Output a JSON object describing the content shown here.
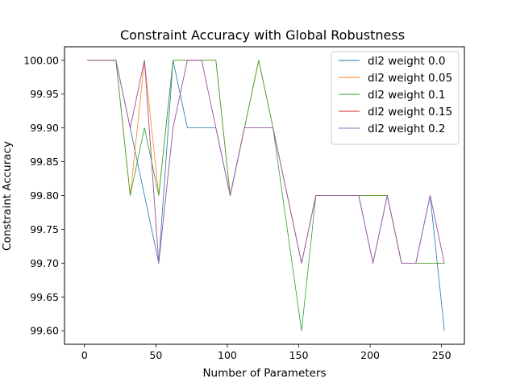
{
  "chart_data": {
    "type": "line",
    "title": "Constraint Accuracy with Global Robustness",
    "xlabel": "Number of Parameters",
    "ylabel": "Constraint Accuracy",
    "xlim": [
      -14,
      266
    ],
    "ylim": [
      99.58,
      100.02
    ],
    "xticks": [
      0,
      50,
      100,
      150,
      200,
      250
    ],
    "xtick_labels": [
      "0",
      "50",
      "100",
      "150",
      "200",
      "250"
    ],
    "yticks": [
      99.6,
      99.65,
      99.7,
      99.75,
      99.8,
      99.85,
      99.9,
      99.95,
      100.0
    ],
    "ytick_labels": [
      "99.60",
      "99.65",
      "99.70",
      "99.75",
      "99.80",
      "99.85",
      "99.90",
      "99.95",
      "100.00"
    ],
    "grid": false,
    "legend_position": "upper right",
    "x": [
      2,
      22,
      32,
      42,
      52,
      62,
      72,
      82,
      92,
      102,
      112,
      122,
      132,
      152,
      162,
      192,
      202,
      212,
      222,
      232,
      242,
      252
    ],
    "series": [
      {
        "name": "dl2 weight 0.0",
        "color": "#1f77b4",
        "values": [
          100.0,
          100.0,
          99.9,
          99.8,
          99.7,
          100.0,
          99.9,
          99.9,
          99.9,
          99.8,
          99.9,
          99.9,
          99.9,
          99.7,
          99.8,
          99.8,
          99.7,
          99.8,
          99.7,
          99.7,
          99.8,
          99.6
        ]
      },
      {
        "name": "dl2 weight 0.05",
        "color": "#ff7f0e",
        "values": [
          100.0,
          100.0,
          99.8,
          100.0,
          99.8,
          100.0,
          100.0,
          100.0,
          100.0,
          99.8,
          99.9,
          100.0,
          99.9,
          99.7,
          99.8,
          99.8,
          99.8,
          99.8,
          99.7,
          99.7,
          99.7,
          99.7
        ]
      },
      {
        "name": "dl2 weight 0.1",
        "color": "#2ca02c",
        "values": [
          100.0,
          100.0,
          99.8,
          99.9,
          99.8,
          100.0,
          100.0,
          100.0,
          100.0,
          99.8,
          99.9,
          100.0,
          99.9,
          99.6,
          99.8,
          99.8,
          99.8,
          99.8,
          99.7,
          99.7,
          99.7,
          99.7
        ]
      },
      {
        "name": "dl2 weight 0.15",
        "color": "#d62728",
        "values": [
          100.0,
          100.0,
          99.9,
          100.0,
          99.7,
          99.9,
          100.0,
          100.0,
          99.9,
          99.8,
          99.9,
          99.9,
          99.9,
          99.7,
          99.8,
          99.8,
          99.7,
          99.8,
          99.7,
          99.7,
          99.8,
          99.7
        ]
      },
      {
        "name": "dl2 weight 0.2",
        "color": "#9467bd",
        "values": [
          100.0,
          100.0,
          99.9,
          100.0,
          99.7,
          99.9,
          100.0,
          100.0,
          99.9,
          99.8,
          99.9,
          99.9,
          99.9,
          99.7,
          99.8,
          99.8,
          99.7,
          99.8,
          99.7,
          99.7,
          99.8,
          99.7
        ]
      }
    ]
  }
}
